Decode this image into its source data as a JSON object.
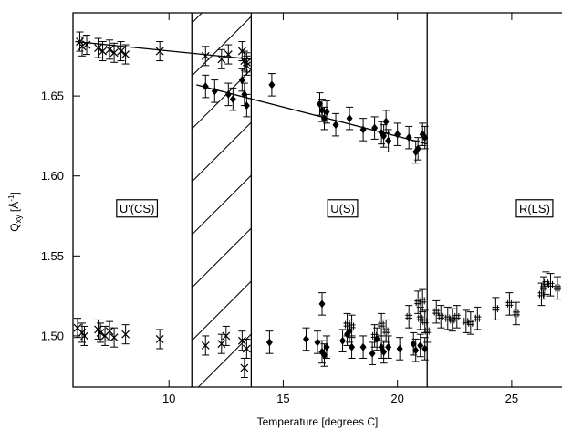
{
  "chart_data": {
    "type": "scatter",
    "xlabel": "Temperature [degrees C]",
    "ylabel": "Q",
    "ylabel_subscript": "xy",
    "ylabel_unit": "[Å",
    "ylabel_unit_sup": "-1",
    "ylabel_unit_close": "]",
    "xlim": [
      5.8,
      27.2
    ],
    "ylim": [
      1.468,
      1.702
    ],
    "x_ticks": [
      10,
      15,
      20,
      25
    ],
    "y_ticks": [
      1.5,
      1.55,
      1.6,
      1.65
    ],
    "x_tick_labels": [
      "10",
      "15",
      "20",
      "25"
    ],
    "y_tick_labels": [
      "1.50",
      "1.55",
      "1.60",
      "1.65"
    ],
    "grid": false,
    "phase_boundaries": [
      11.0,
      13.6,
      21.3
    ],
    "hatched_region": [
      11.0,
      13.6
    ],
    "phase_labels": [
      {
        "text": "U'(CS)",
        "x": 8.6,
        "y": 1.58
      },
      {
        "text": "U(S)",
        "x": 17.6,
        "y": 1.58
      },
      {
        "text": "R(LS)",
        "x": 26.0,
        "y": 1.58
      }
    ],
    "fit_lines": [
      {
        "x": [
          5.9,
          13.6
        ],
        "y": [
          1.684,
          1.673
        ]
      },
      {
        "x": [
          11.2,
          21.3
        ],
        "y": [
          1.657,
          1.62
        ]
      }
    ],
    "series": [
      {
        "marker": "x",
        "error": 0.006,
        "points": [
          [
            6.1,
            1.684
          ],
          [
            6.2,
            1.681
          ],
          [
            6.4,
            1.682
          ],
          [
            6.9,
            1.68
          ],
          [
            7.1,
            1.678
          ],
          [
            7.4,
            1.679
          ],
          [
            7.6,
            1.677
          ],
          [
            7.9,
            1.678
          ],
          [
            8.1,
            1.676
          ],
          [
            9.6,
            1.678
          ],
          [
            11.6,
            1.675
          ],
          [
            12.3,
            1.673
          ],
          [
            12.6,
            1.676
          ],
          [
            13.2,
            1.678
          ],
          [
            13.3,
            1.672
          ],
          [
            13.4,
            1.671
          ],
          [
            13.4,
            1.669
          ],
          [
            6.0,
            1.505
          ],
          [
            6.2,
            1.502
          ],
          [
            6.3,
            1.5
          ],
          [
            6.9,
            1.504
          ],
          [
            7.0,
            1.502
          ],
          [
            7.2,
            1.5
          ],
          [
            7.4,
            1.503
          ],
          [
            7.6,
            1.499
          ],
          [
            8.1,
            1.501
          ],
          [
            9.6,
            1.498
          ],
          [
            11.6,
            1.494
          ],
          [
            12.3,
            1.495
          ],
          [
            12.5,
            1.5
          ],
          [
            13.2,
            1.497
          ],
          [
            13.3,
            1.48
          ],
          [
            13.4,
            1.492
          ]
        ]
      },
      {
        "marker": "diamond",
        "error": 0.007,
        "points": [
          [
            11.6,
            1.656
          ],
          [
            12.0,
            1.653
          ],
          [
            12.6,
            1.651
          ],
          [
            12.8,
            1.648
          ],
          [
            13.2,
            1.66
          ],
          [
            13.3,
            1.651
          ],
          [
            13.4,
            1.644
          ],
          [
            14.5,
            1.657
          ],
          [
            16.6,
            1.645
          ],
          [
            16.7,
            1.641
          ],
          [
            16.8,
            1.636
          ],
          [
            16.9,
            1.64
          ],
          [
            17.3,
            1.632
          ],
          [
            17.9,
            1.636
          ],
          [
            18.5,
            1.629
          ],
          [
            19.0,
            1.63
          ],
          [
            19.3,
            1.627
          ],
          [
            19.4,
            1.625
          ],
          [
            19.5,
            1.634
          ],
          [
            19.6,
            1.622
          ],
          [
            20.0,
            1.626
          ],
          [
            20.5,
            1.624
          ],
          [
            20.8,
            1.615
          ],
          [
            20.9,
            1.617
          ],
          [
            21.1,
            1.626
          ],
          [
            21.2,
            1.624
          ],
          [
            14.4,
            1.496
          ],
          [
            16.0,
            1.498
          ],
          [
            16.5,
            1.496
          ],
          [
            16.7,
            1.49
          ],
          [
            16.8,
            1.488
          ],
          [
            16.9,
            1.493
          ],
          [
            16.7,
            1.52
          ],
          [
            17.6,
            1.497
          ],
          [
            17.8,
            1.501
          ],
          [
            17.9,
            1.503
          ],
          [
            18.0,
            1.493
          ],
          [
            18.5,
            1.493
          ],
          [
            18.9,
            1.489
          ],
          [
            19.1,
            1.498
          ],
          [
            19.3,
            1.493
          ],
          [
            19.4,
            1.49
          ],
          [
            19.6,
            1.493
          ],
          [
            20.1,
            1.492
          ],
          [
            20.7,
            1.495
          ],
          [
            20.8,
            1.491
          ],
          [
            21.0,
            1.494
          ],
          [
            21.2,
            1.492
          ]
        ]
      },
      {
        "marker": "hash",
        "error": 0.007,
        "points": [
          [
            17.8,
            1.507
          ],
          [
            18.0,
            1.506
          ],
          [
            19.0,
            1.5
          ],
          [
            19.3,
            1.507
          ],
          [
            19.5,
            1.503
          ],
          [
            20.5,
            1.512
          ],
          [
            20.9,
            1.521
          ],
          [
            21.0,
            1.511
          ],
          [
            21.1,
            1.522
          ],
          [
            21.2,
            1.509
          ],
          [
            21.3,
            1.503
          ],
          [
            21.7,
            1.515
          ],
          [
            21.9,
            1.512
          ],
          [
            22.2,
            1.511
          ],
          [
            22.4,
            1.51
          ],
          [
            22.6,
            1.512
          ],
          [
            23.0,
            1.509
          ],
          [
            23.2,
            1.508
          ],
          [
            23.5,
            1.511
          ],
          [
            24.3,
            1.517
          ],
          [
            24.9,
            1.52
          ],
          [
            25.2,
            1.514
          ],
          [
            26.3,
            1.526
          ],
          [
            26.4,
            1.53
          ],
          [
            26.5,
            1.533
          ],
          [
            26.7,
            1.532
          ],
          [
            27.0,
            1.53
          ]
        ]
      }
    ]
  }
}
